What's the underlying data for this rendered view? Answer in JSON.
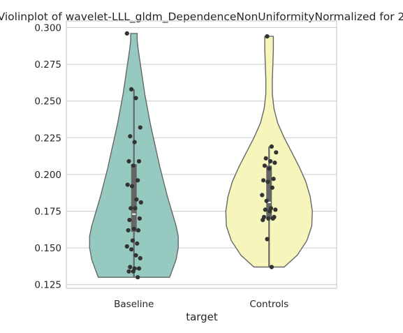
{
  "chart_data": {
    "type": "violin",
    "title": "Violinplot of wavelet-LLL_gldm_DependenceNonUniformityNormalized for 2",
    "xlabel": "target",
    "ylabel": "",
    "categories": [
      "Baseline",
      "Controls"
    ],
    "ylim": [
      0.1225,
      0.3045
    ],
    "yticks": [
      0.125,
      0.15,
      0.175,
      0.2,
      0.225,
      0.25,
      0.275,
      0.3
    ],
    "ytick_labels": [
      "0.125",
      "0.150",
      "0.175",
      "0.200",
      "0.225",
      "0.250",
      "0.275",
      "0.300"
    ],
    "grid": true,
    "colors": {
      "Baseline": "#96cac1",
      "Controls": "#f6f6bc",
      "outline": "#666666",
      "points": "#333333",
      "grid": "#cccccc"
    },
    "violins": [
      {
        "category": "Baseline",
        "range": [
          0.13,
          0.296
        ],
        "quartiles": [
          0.161,
          0.173,
          0.207
        ],
        "whiskers": [
          0.13,
          0.258
        ],
        "density": [
          [
            0.13,
            0.66
          ],
          [
            0.136,
            0.72
          ],
          [
            0.142,
            0.78
          ],
          [
            0.15,
            0.82
          ],
          [
            0.158,
            0.82
          ],
          [
            0.165,
            0.78
          ],
          [
            0.175,
            0.7
          ],
          [
            0.185,
            0.62
          ],
          [
            0.195,
            0.55
          ],
          [
            0.205,
            0.48
          ],
          [
            0.215,
            0.42
          ],
          [
            0.225,
            0.36
          ],
          [
            0.235,
            0.3
          ],
          [
            0.245,
            0.25
          ],
          [
            0.255,
            0.2
          ],
          [
            0.265,
            0.16
          ],
          [
            0.275,
            0.12
          ],
          [
            0.285,
            0.08
          ],
          [
            0.291,
            0.06
          ],
          [
            0.296,
            0.06
          ]
        ],
        "points": [
          0.296,
          0.258,
          0.252,
          0.232,
          0.226,
          0.222,
          0.209,
          0.209,
          0.206,
          0.196,
          0.193,
          0.192,
          0.183,
          0.181,
          0.177,
          0.177,
          0.17,
          0.169,
          0.163,
          0.162,
          0.162,
          0.155,
          0.153,
          0.151,
          0.149,
          0.145,
          0.143,
          0.137,
          0.136,
          0.136,
          0.134,
          0.134,
          0.13
        ]
      },
      {
        "category": "Controls",
        "range": [
          0.137,
          0.294
        ],
        "quartiles": [
          0.17,
          0.181,
          0.206
        ],
        "whiskers": [
          0.137,
          0.219
        ],
        "density": [
          [
            0.137,
            0.28
          ],
          [
            0.145,
            0.52
          ],
          [
            0.155,
            0.7
          ],
          [
            0.165,
            0.79
          ],
          [
            0.175,
            0.8
          ],
          [
            0.185,
            0.76
          ],
          [
            0.195,
            0.68
          ],
          [
            0.205,
            0.56
          ],
          [
            0.215,
            0.42
          ],
          [
            0.225,
            0.28
          ],
          [
            0.235,
            0.16
          ],
          [
            0.245,
            0.09
          ],
          [
            0.255,
            0.06
          ],
          [
            0.265,
            0.06
          ],
          [
            0.275,
            0.07
          ],
          [
            0.285,
            0.08
          ],
          [
            0.292,
            0.08
          ],
          [
            0.294,
            0.08
          ]
        ],
        "points": [
          0.294,
          0.219,
          0.215,
          0.211,
          0.209,
          0.208,
          0.206,
          0.204,
          0.197,
          0.196,
          0.195,
          0.191,
          0.186,
          0.182,
          0.177,
          0.176,
          0.176,
          0.175,
          0.171,
          0.171,
          0.17,
          0.17,
          0.169,
          0.156,
          0.137
        ]
      }
    ]
  }
}
